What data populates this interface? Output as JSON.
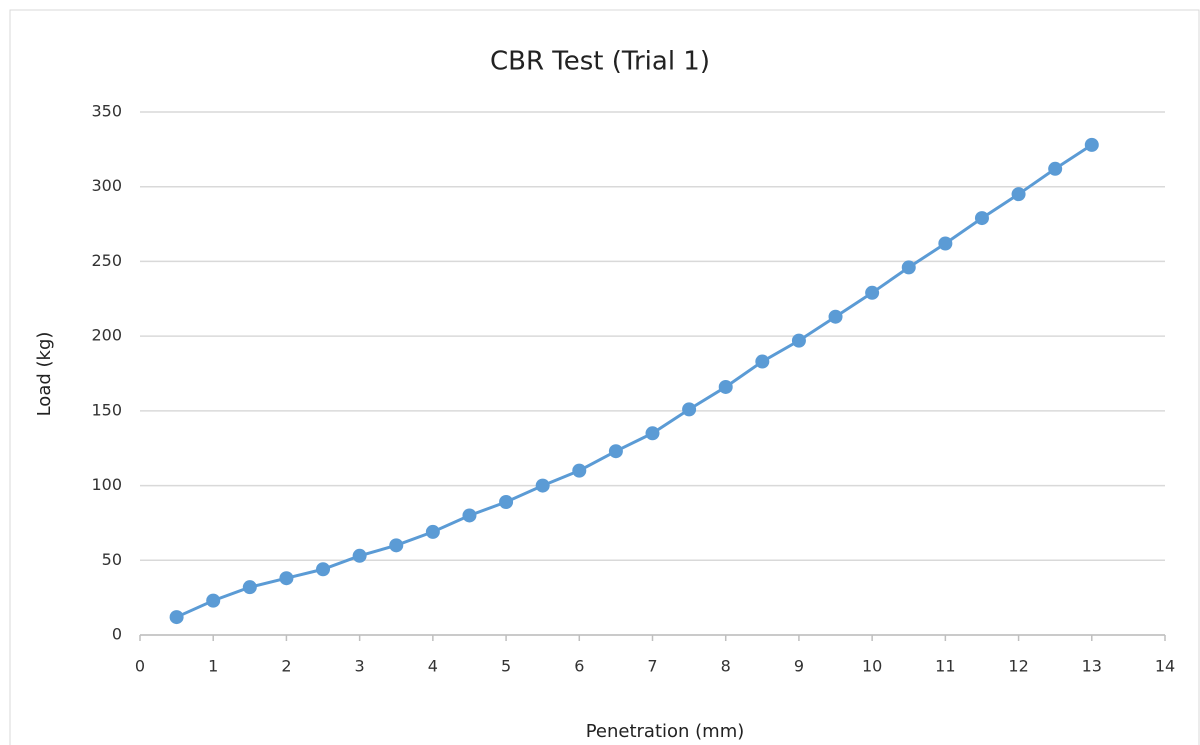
{
  "chart_data": {
    "type": "line",
    "title": "CBR Test (Trial 1)",
    "xlabel": "Penetration (mm)",
    "ylabel": "Load (kg)",
    "x": [
      0.5,
      1,
      1.5,
      2,
      2.5,
      3,
      3.5,
      4,
      4.5,
      5,
      5.5,
      6,
      6.5,
      7,
      7.5,
      8,
      8.5,
      9,
      9.5,
      10,
      10.5,
      11,
      11.5,
      12,
      12.5,
      13
    ],
    "values": [
      12,
      23,
      32,
      38,
      44,
      53,
      60,
      69,
      80,
      89,
      100,
      110,
      123,
      135,
      151,
      166,
      183,
      197,
      213,
      229,
      246,
      262,
      279,
      295,
      312,
      328
    ],
    "color": "#5b9bd5",
    "xlim": [
      0,
      14
    ],
    "xticks": [
      0,
      1,
      2,
      3,
      4,
      5,
      6,
      7,
      8,
      9,
      10,
      11,
      12,
      13,
      14
    ],
    "ylim": [
      0,
      350
    ],
    "yticks": [
      0,
      50,
      100,
      150,
      200,
      250,
      300,
      350
    ],
    "grid": true
  }
}
